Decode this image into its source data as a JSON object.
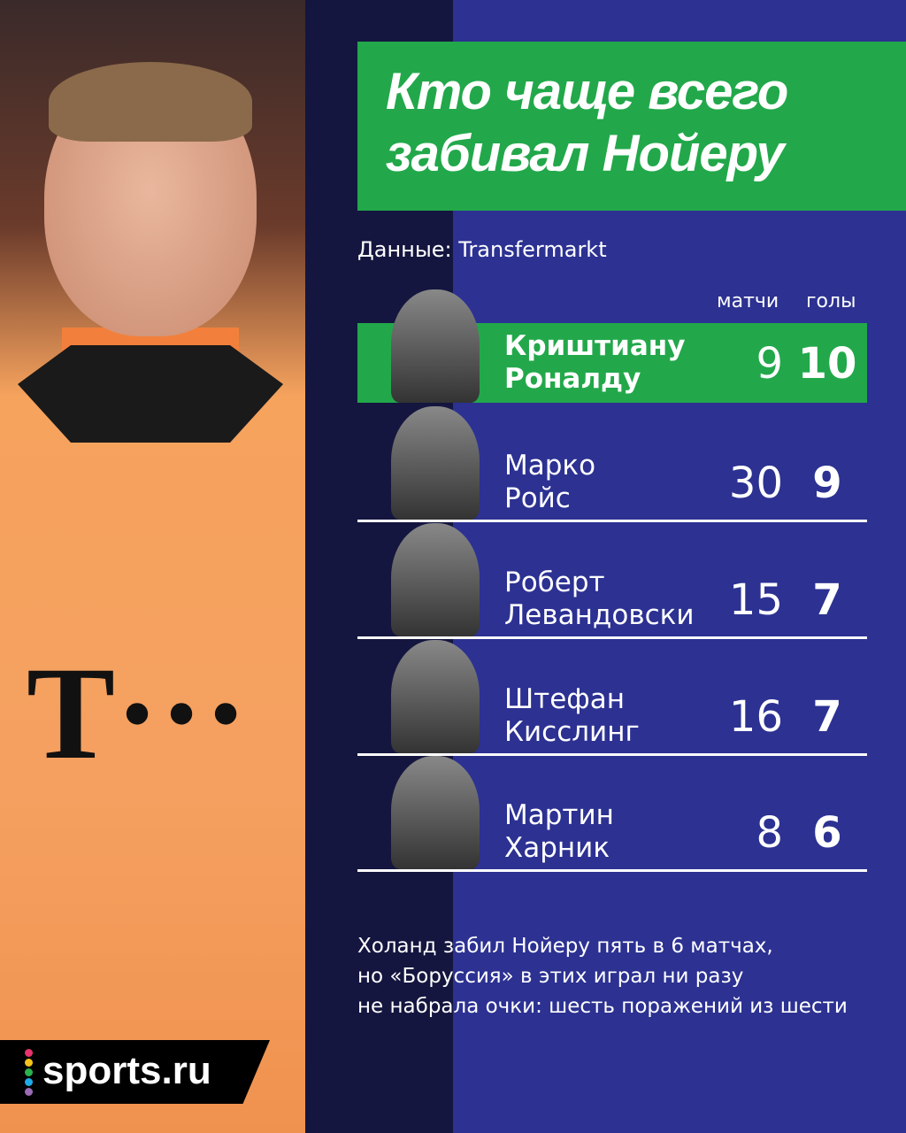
{
  "title": {
    "line1": "Кто чаще всего",
    "line2": "забивал Нойеру"
  },
  "source": "Данные: Transfermarkt",
  "columns": {
    "matches": "матчи",
    "goals": "голы"
  },
  "chart_data": {
    "type": "table",
    "columns": [
      "",
      "матчи",
      "голы"
    ],
    "rows": [
      {
        "name1": "Криштиану",
        "name2": "Роналду",
        "matches": "9",
        "goals": "10",
        "highlight": true
      },
      {
        "name1": "Марко",
        "name2": "Ройс",
        "matches": "30",
        "goals": "9"
      },
      {
        "name1": "Роберт",
        "name2": "Левандовски",
        "matches": "15",
        "goals": "7"
      },
      {
        "name1": "Штефан",
        "name2": "Кисслинг",
        "matches": "16",
        "goals": "7"
      },
      {
        "name1": "Мартин",
        "name2": "Харник",
        "matches": "8",
        "goals": "6"
      }
    ]
  },
  "note": {
    "line1": "Холанд забил Нойеру пять в 6 матчах,",
    "line2": "но «Боруссия» в этих играл ни разу",
    "line3": "не набрала очки: шесть поражений из шести"
  },
  "logo": "sports.ru",
  "colors": {
    "background": "#2c3192",
    "accent": "#22a84a",
    "strip": "#14163f"
  }
}
